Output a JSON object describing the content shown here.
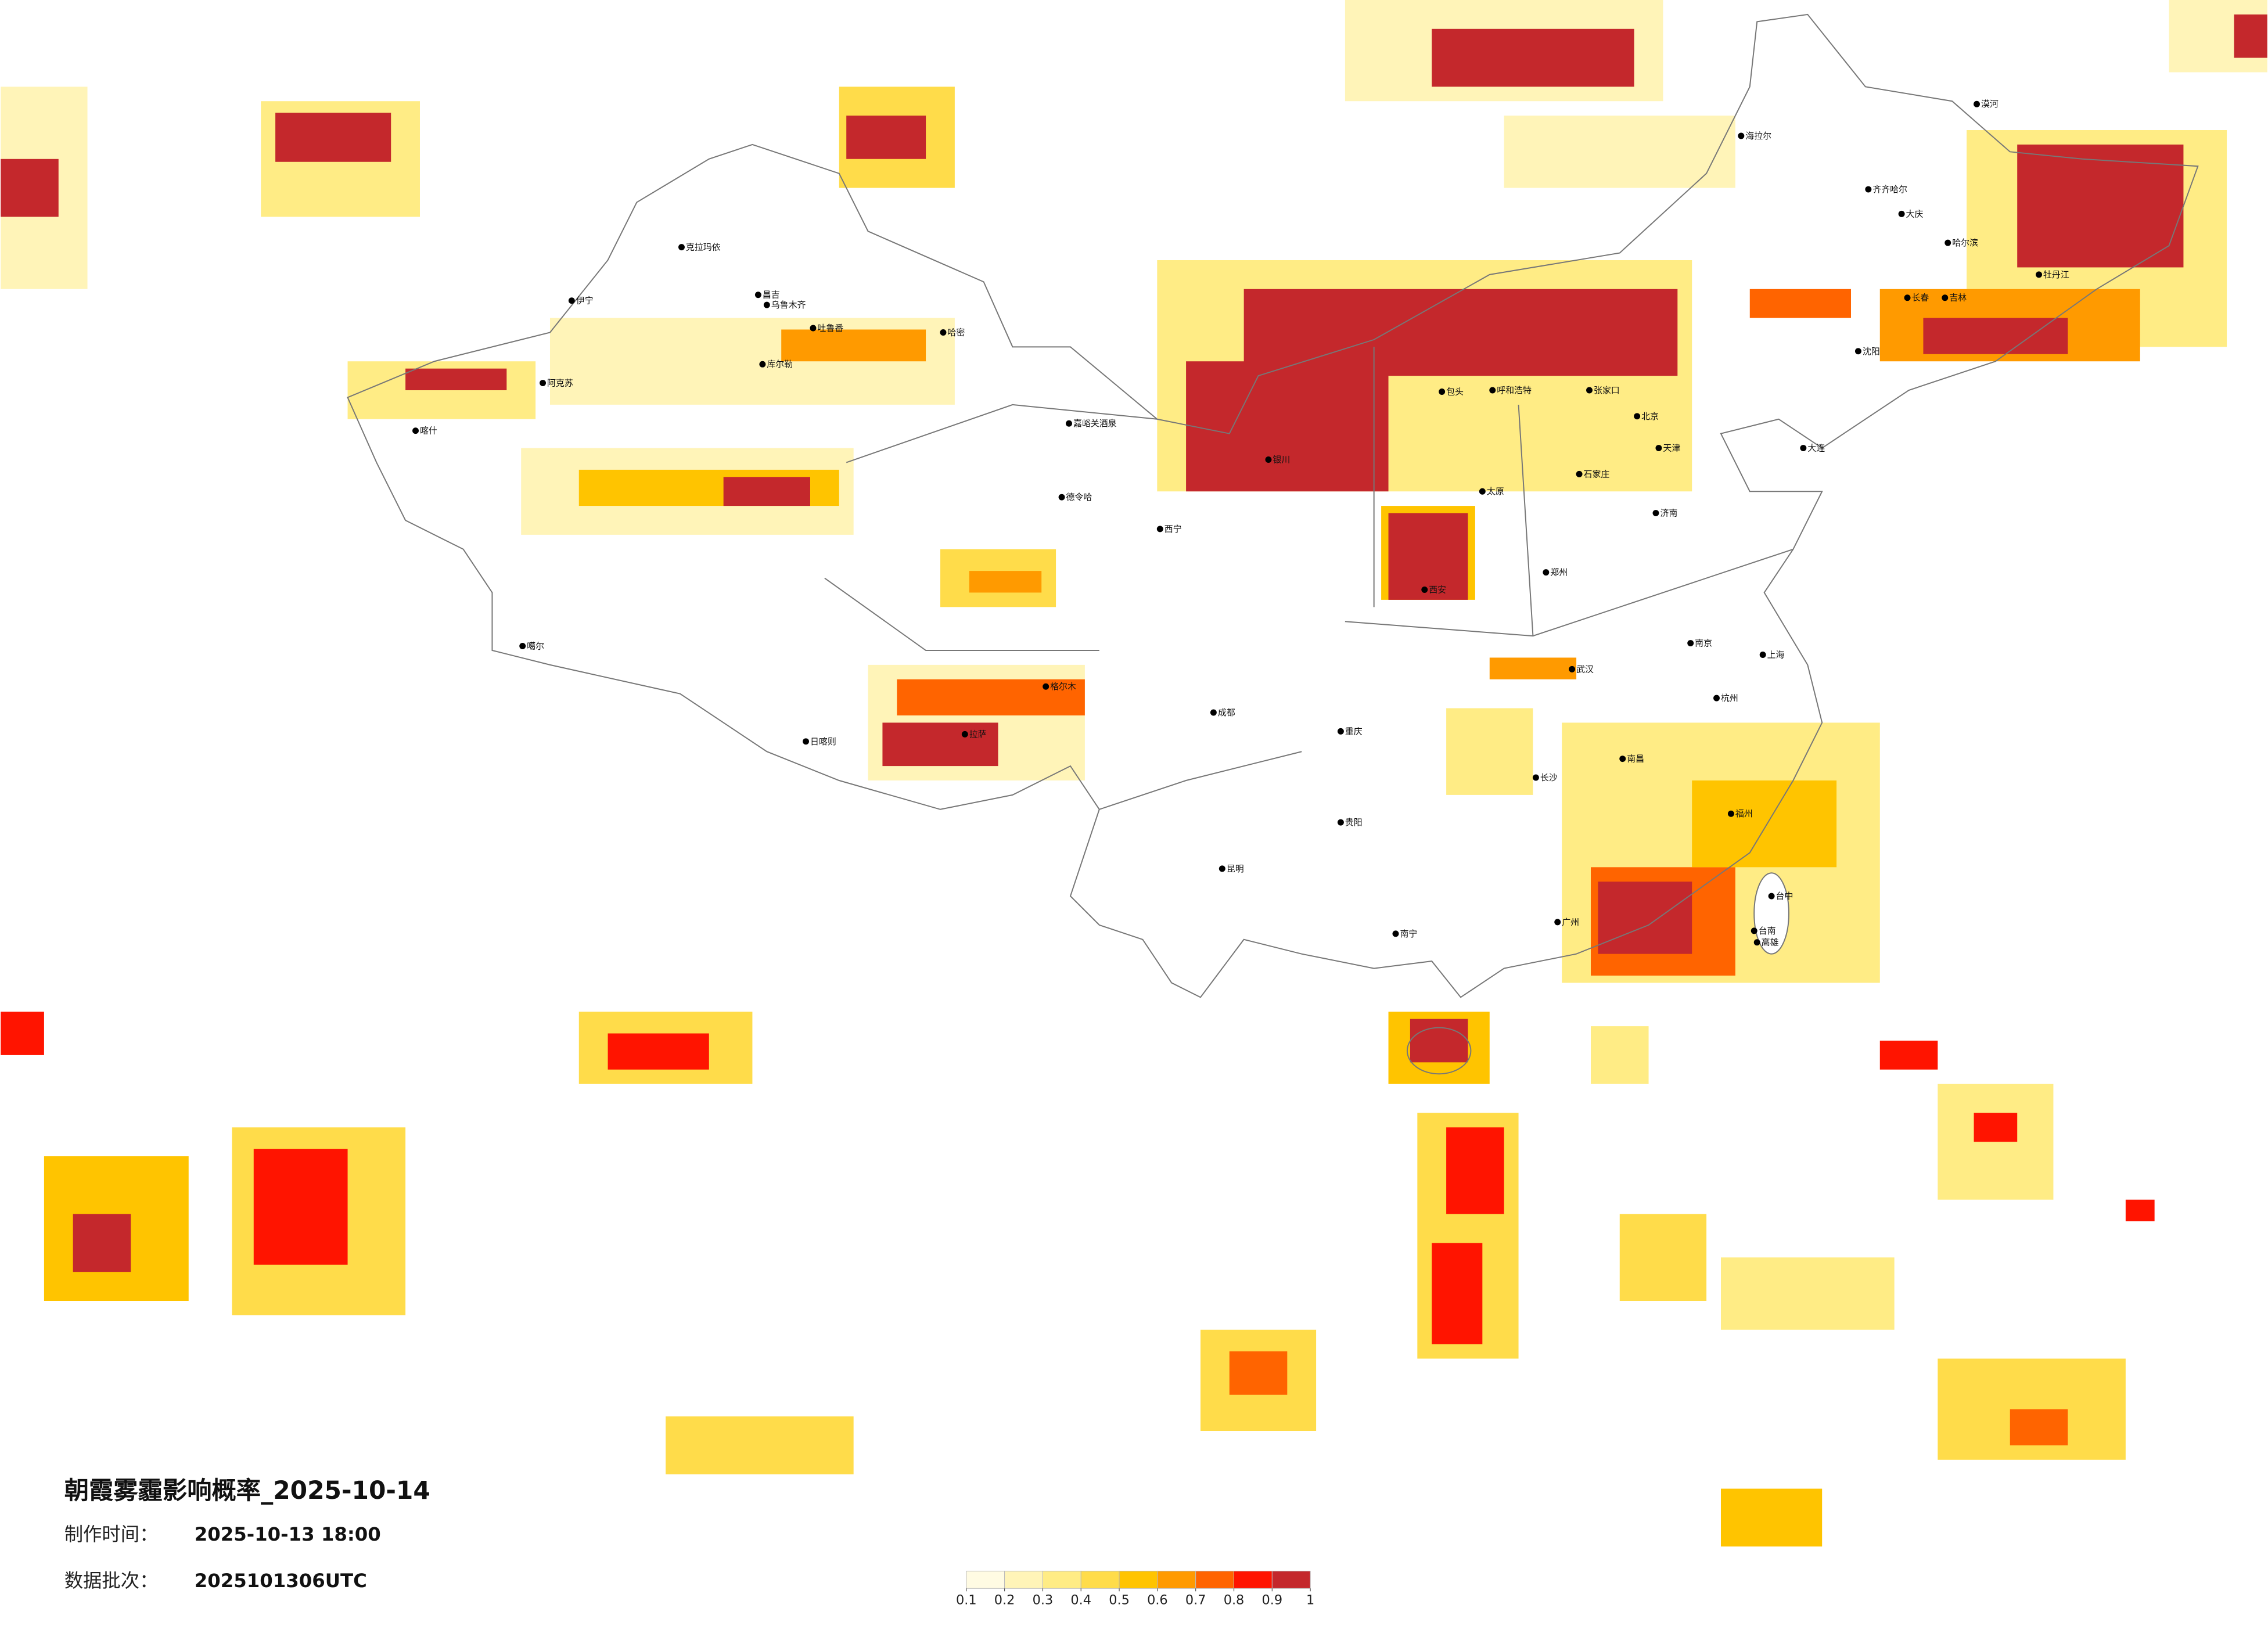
{
  "header": {
    "title": "朝霞雾霾影响概率_2025-10-14",
    "made_time_label": "制作时间：",
    "made_time": "2025-10-13 18:00",
    "batch_label": "数据批次：",
    "batch": "2025101306UTC"
  },
  "legend": {
    "ticks": [
      0.1,
      0.2,
      0.3,
      0.4,
      0.5,
      0.6,
      0.7,
      0.8,
      0.9,
      1
    ],
    "colors": [
      "#fffbe3",
      "#fff4b8",
      "#ffec85",
      "#ffdc4a",
      "#ffc400",
      "#ff9a00",
      "#ff6400",
      "#ff1400",
      "#c4282c"
    ]
  },
  "cities": [
    "克拉玛依",
    "伊宁",
    "昌吉",
    "乌鲁木齐",
    "吐鲁番",
    "哈密",
    "库尔勒",
    "阿克苏",
    "喀什",
    "嘉峪关酒泉",
    "德令哈",
    "格尔木",
    "噶尔",
    "日喀则",
    "拉萨",
    "西宁",
    "银川",
    "呼和浩特",
    "包头",
    "北京",
    "天津",
    "张家口",
    "石家庄",
    "太原",
    "济南",
    "郑州",
    "西安",
    "武汉",
    "南京",
    "上海",
    "杭州",
    "长沙",
    "南昌",
    "福州",
    "广州",
    "南宁",
    "昆明",
    "贵阳",
    "重庆",
    "成都",
    "海拉尔",
    "漠河",
    "齐齐哈尔",
    "大庆",
    "哈尔滨",
    "长春",
    "吉林",
    "牡丹江",
    "沈阳",
    "大连",
    "台中",
    "台南",
    "高雄"
  ]
}
